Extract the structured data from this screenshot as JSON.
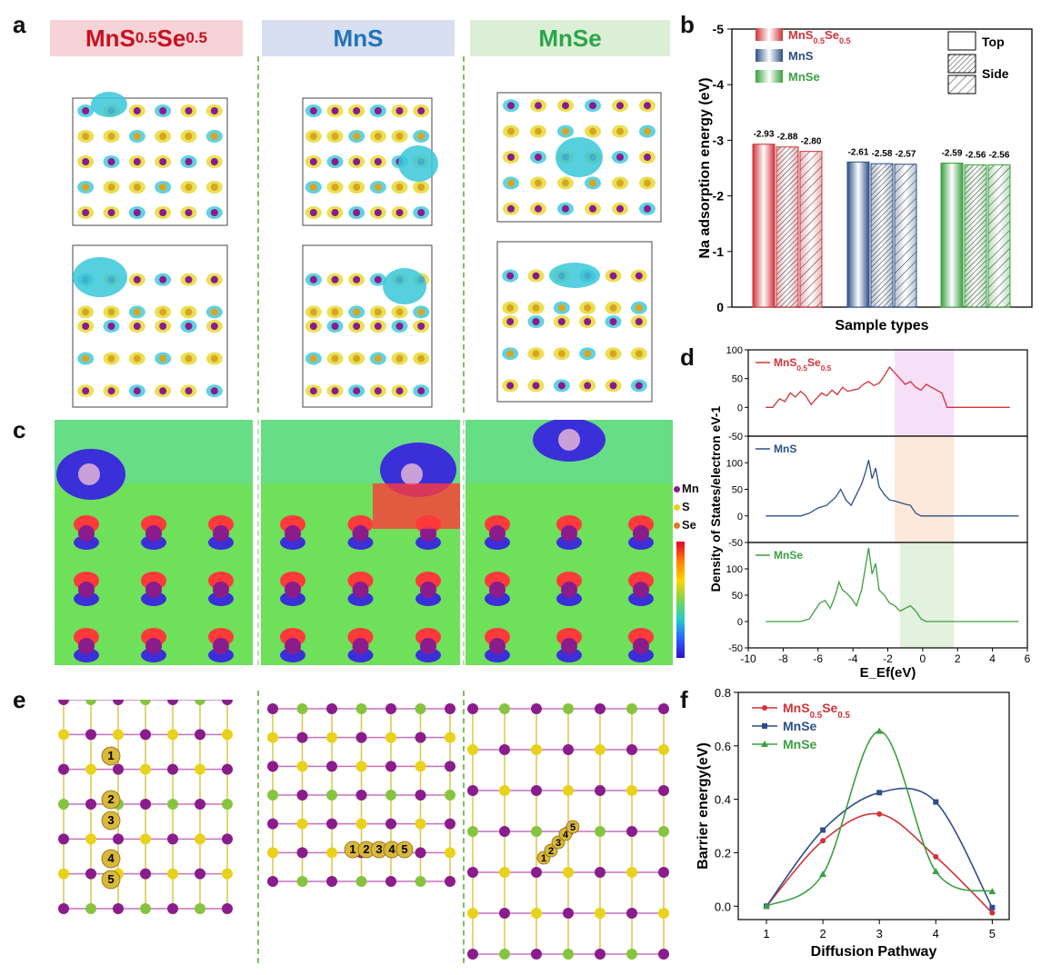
{
  "panel_labels": {
    "a": "a",
    "b": "b",
    "c": "c",
    "d": "d",
    "e": "e",
    "f": "f"
  },
  "headers": {
    "mns05": {
      "base": "MnS",
      "sub1": "0.5",
      "mid": "Se",
      "sub2": "0.5",
      "color": "#c8101e",
      "bg": "#f6d3d6"
    },
    "mns": {
      "text": "MnS",
      "color": "#2173b8",
      "bg": "#d7dff0"
    },
    "mnse": {
      "text": "MnSe",
      "color": "#2aa64a",
      "bg": "#dcefd6"
    }
  },
  "structure_legend": {
    "mn": "Mn",
    "s": "S",
    "se": "Se"
  },
  "e_labels": {
    "left": [
      "1",
      "2",
      "3",
      "4",
      "5"
    ],
    "middle": [
      "1",
      "2",
      "3",
      "4",
      "5"
    ],
    "right": [
      "1",
      "2",
      "3",
      "4",
      "5"
    ]
  },
  "colors": {
    "red": "#d2323a",
    "blue": "#2c4f86",
    "green": "#3aa040",
    "mn": "#8a1c8c",
    "s": "#e8d21a",
    "se": "#86c440",
    "cyan": "#38c7d8",
    "yellow": "#e3d82a"
  },
  "chart_data": [
    {
      "id": "b",
      "type": "bar",
      "title": "",
      "xlabel": "Sample types",
      "ylabel": "Na adsorption energy (eV)",
      "ylim": [
        0,
        -5
      ],
      "yticks": [
        "0",
        "-1",
        "-2",
        "-3",
        "-4",
        "-5"
      ],
      "ytick_values": [
        0,
        -1,
        -2,
        -3,
        -4,
        -5
      ],
      "groups": [
        "MnS0.5Se0.5",
        "MnS",
        "MnSe"
      ],
      "series": [
        {
          "name": "MnS0.5Se0.5",
          "values": [
            -2.93,
            -2.88,
            -2.8
          ],
          "labels": [
            "-2.93",
            "-2.88",
            "-2.80"
          ]
        },
        {
          "name": "MnS",
          "values": [
            -2.61,
            -2.58,
            -2.57
          ],
          "labels": [
            "-2.61",
            "-2.58",
            "-2.57"
          ]
        },
        {
          "name": "MnSe",
          "values": [
            -2.59,
            -2.56,
            -2.56
          ],
          "labels": [
            "-2.59",
            "-2.56",
            "-2.56"
          ]
        }
      ],
      "legend": [
        {
          "base": "MnS",
          "sub1": "0.5",
          "mid": "Se",
          "sub2": "0.5"
        },
        {
          "base": "MnS"
        },
        {
          "base": "MnSe"
        }
      ],
      "pattern_legend": [
        "Top",
        "Side"
      ]
    },
    {
      "id": "d",
      "type": "line",
      "xlabel": "E_Ef(eV)",
      "ylabel": "Density of States/electron eV-1",
      "xlim": [
        -10,
        6
      ],
      "xticks": [
        "-10",
        "-8",
        "-6",
        "-4",
        "-2",
        "0",
        "2",
        "4",
        "6"
      ],
      "xtick_values": [
        -10,
        -8,
        -6,
        -4,
        -2,
        0,
        2,
        4,
        6
      ],
      "subplots": [
        {
          "name": "MnS0.5Se0.5",
          "legend": {
            "base": "MnS",
            "sub1": "0.5",
            "mid": "Se",
            "sub2": "0.5"
          },
          "ylim": [
            -50,
            100
          ],
          "yticks": [
            "-50",
            "0",
            "50",
            "100"
          ],
          "ytick_values": [
            -50,
            0,
            50,
            100
          ],
          "shade": [
            -1.6,
            1.8
          ],
          "x": [
            -9,
            -8.6,
            -8.2,
            -7.9,
            -7.6,
            -7.3,
            -7,
            -6.7,
            -6.4,
            -6.1,
            -5.8,
            -5.5,
            -5.2,
            -4.9,
            -4.6,
            -4.3,
            -4,
            -3.7,
            -3.4,
            -3.1,
            -2.8,
            -2.5,
            -2.2,
            -1.9,
            -1.6,
            -1.3,
            -1,
            -0.7,
            -0.4,
            -0.1,
            0.2,
            0.5,
            0.8,
            1.1,
            1.4,
            1.7,
            2,
            3,
            4,
            5
          ],
          "y": [
            0,
            0,
            15,
            10,
            25,
            18,
            28,
            20,
            5,
            15,
            25,
            20,
            30,
            22,
            35,
            28,
            30,
            32,
            40,
            45,
            38,
            42,
            55,
            70,
            60,
            50,
            40,
            45,
            35,
            30,
            40,
            35,
            30,
            25,
            0,
            0,
            0,
            0,
            0,
            0
          ]
        },
        {
          "name": "MnS",
          "legend": {
            "base": "MnS"
          },
          "ylim": [
            -50,
            150
          ],
          "yticks": [
            "-50",
            "0",
            "50",
            "100"
          ],
          "ytick_values": [
            -50,
            0,
            50,
            100
          ],
          "shade": [
            -1.6,
            1.8
          ],
          "x": [
            -9,
            -8,
            -7,
            -6.5,
            -6,
            -5.5,
            -5,
            -4.7,
            -4.4,
            -4.1,
            -3.8,
            -3.5,
            -3.3,
            -3.1,
            -2.9,
            -2.7,
            -2.5,
            -2.2,
            -1.9,
            -1.6,
            -1.3,
            -1,
            -0.7,
            -0.4,
            -0.1,
            0.2,
            1,
            3,
            5.5
          ],
          "y": [
            0,
            0,
            0,
            5,
            15,
            20,
            35,
            50,
            30,
            20,
            40,
            60,
            80,
            105,
            70,
            90,
            55,
            40,
            30,
            28,
            25,
            22,
            20,
            5,
            0,
            0,
            0,
            0,
            0
          ]
        },
        {
          "name": "MnSe",
          "legend": {
            "base": "MnSe"
          },
          "ylim": [
            -50,
            150
          ],
          "yticks": [
            "-50",
            "0",
            "50",
            "100"
          ],
          "ytick_values": [
            -50,
            0,
            50,
            100
          ],
          "shade": [
            -1.3,
            1.8
          ],
          "x": [
            -9,
            -8,
            -7,
            -6.5,
            -6.2,
            -5.9,
            -5.6,
            -5.3,
            -5,
            -4.8,
            -4.6,
            -4.4,
            -4.1,
            -3.8,
            -3.5,
            -3.3,
            -3.1,
            -2.9,
            -2.7,
            -2.5,
            -2.2,
            -1.9,
            -1.6,
            -1.3,
            -1,
            -0.7,
            -0.4,
            -0.1,
            0.2,
            1,
            3,
            5.5
          ],
          "y": [
            0,
            0,
            0,
            5,
            20,
            35,
            40,
            25,
            50,
            75,
            60,
            55,
            45,
            30,
            60,
            100,
            140,
            90,
            110,
            60,
            50,
            35,
            30,
            20,
            25,
            30,
            20,
            5,
            0,
            0,
            0,
            0
          ]
        }
      ]
    },
    {
      "id": "f",
      "type": "line",
      "xlabel": "Diffusion Pathway",
      "ylabel": "Barrier energy(eV)",
      "xlim": [
        0.5,
        5.3
      ],
      "ylim": [
        -0.05,
        0.8
      ],
      "xticks": [
        "1",
        "2",
        "3",
        "4",
        "5"
      ],
      "xtick_values": [
        1,
        2,
        3,
        4,
        5
      ],
      "yticks": [
        "0.0",
        "0.2",
        "0.4",
        "0.6",
        "0.8"
      ],
      "ytick_values": [
        0,
        0.2,
        0.4,
        0.6,
        0.8
      ],
      "series": [
        {
          "name": "MnS0.5Se0.5",
          "legend": {
            "base": "MnS",
            "sub1": "0.5",
            "mid": "Se",
            "sub2": "0.5"
          },
          "marker": "circle",
          "x": [
            1,
            2,
            3,
            4,
            5
          ],
          "y": [
            0,
            0.245,
            0.345,
            0.185,
            -0.025
          ]
        },
        {
          "name": "MnSe",
          "legend": {
            "base": "MnSe"
          },
          "marker": "square",
          "x": [
            1,
            2,
            3,
            4,
            5
          ],
          "y": [
            0,
            0.285,
            0.425,
            0.39,
            -0.005
          ]
        },
        {
          "name": "MnSe",
          "legend": {
            "base": "MnSe"
          },
          "marker": "triangle",
          "x": [
            1,
            2,
            3,
            4,
            5
          ],
          "y": [
            0,
            0.12,
            0.655,
            0.13,
            0.055
          ]
        }
      ]
    }
  ]
}
